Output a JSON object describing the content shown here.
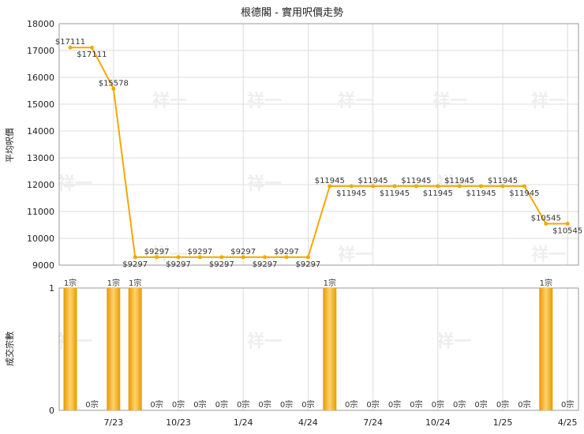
{
  "chart_data": [
    {
      "type": "line",
      "title": "根德閣 - 實用呎價走勢",
      "ylabel": "平均呎價",
      "ylim": [
        9000,
        18000
      ],
      "yticks": [
        9000,
        10000,
        11000,
        12000,
        13000,
        14000,
        15000,
        16000,
        17000,
        18000
      ],
      "grid": true,
      "x": [
        "2023-05",
        "2023-06",
        "2023-07",
        "2023-08",
        "2023-09",
        "2023-10",
        "2023-11",
        "2023-12",
        "2024-01",
        "2024-02",
        "2024-03",
        "2024-04",
        "2024-05",
        "2024-06",
        "2024-07",
        "2024-08",
        "2024-09",
        "2024-10",
        "2024-11",
        "2024-12",
        "2025-01",
        "2025-02",
        "2025-03",
        "2025-04"
      ],
      "series": [
        {
          "values": [
            17111,
            17111,
            15578,
            9297,
            9297,
            9297,
            9297,
            9297,
            9297,
            9297,
            9297,
            9297,
            11945,
            11945,
            11945,
            11945,
            11945,
            11945,
            11945,
            11945,
            11945,
            11945,
            10545,
            10545
          ],
          "labels": [
            "$17111",
            "$17111",
            "$15578",
            "$9297",
            "$9297",
            "$9297",
            "$9297",
            "$9297",
            "$9297",
            "$9297",
            "$9297",
            "$9297",
            "$11945",
            "$11945",
            "$11945",
            "$11945",
            "$11945",
            "$11945",
            "$11945",
            "$11945",
            "$11945",
            "$11945",
            "$10545",
            "$10545"
          ],
          "color": "#f5a800"
        }
      ]
    },
    {
      "type": "bar",
      "ylabel": "成交宗數",
      "ylim": [
        0,
        1
      ],
      "yticks": [
        0,
        1
      ],
      "grid": true,
      "categories": [
        "2023-05",
        "2023-06",
        "2023-07",
        "2023-08",
        "2023-09",
        "2023-10",
        "2023-11",
        "2023-12",
        "2024-01",
        "2024-02",
        "2024-03",
        "2024-04",
        "2024-05",
        "2024-06",
        "2024-07",
        "2024-08",
        "2024-09",
        "2024-10",
        "2024-11",
        "2024-12",
        "2025-01",
        "2025-02",
        "2025-03",
        "2025-04"
      ],
      "xtick_labels": [
        {
          "at": "2023-07",
          "text": "7/23"
        },
        {
          "at": "2023-10",
          "text": "10/23"
        },
        {
          "at": "2024-01",
          "text": "1/24"
        },
        {
          "at": "2024-04",
          "text": "4/24"
        },
        {
          "at": "2024-07",
          "text": "7/24"
        },
        {
          "at": "2024-10",
          "text": "10/24"
        },
        {
          "at": "2025-01",
          "text": "1/25"
        },
        {
          "at": "2025-04",
          "text": "4/25"
        }
      ],
      "values": [
        1,
        0,
        1,
        1,
        0,
        0,
        0,
        0,
        0,
        0,
        0,
        0,
        1,
        0,
        0,
        0,
        0,
        0,
        0,
        0,
        0,
        0,
        1,
        0
      ],
      "labels": [
        "1宗",
        "0宗",
        "1宗",
        "1宗",
        "0宗",
        "0宗",
        "0宗",
        "0宗",
        "0宗",
        "0宗",
        "0宗",
        "0宗",
        "1宗",
        "0宗",
        "0宗",
        "0宗",
        "0宗",
        "0宗",
        "0宗",
        "0宗",
        "0宗",
        "0宗",
        "1宗",
        "0宗"
      ],
      "color": "#f5a800"
    }
  ],
  "watermark": "祥一"
}
